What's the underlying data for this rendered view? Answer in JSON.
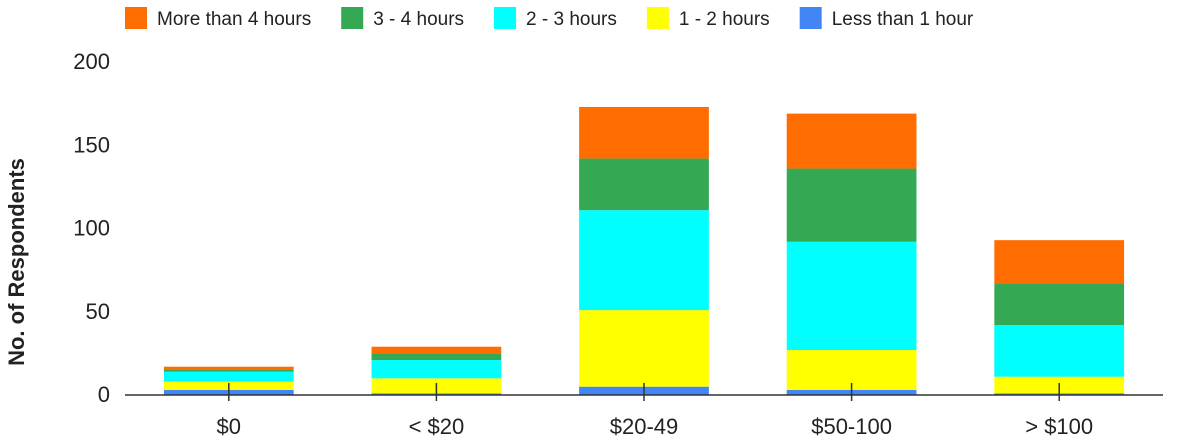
{
  "chart_data": {
    "type": "bar",
    "stacked": true,
    "title": "",
    "xlabel": "",
    "ylabel": "No. of Respondents",
    "ylim": [
      0,
      200
    ],
    "yticks": [
      0,
      50,
      100,
      150,
      200
    ],
    "grid": false,
    "legend_position": "top",
    "categories": [
      "$0",
      "< $20",
      "$20-49",
      "$50-100",
      "> $100"
    ],
    "series": [
      {
        "name": "Less than 1 hour",
        "color": "#4285f4",
        "values": [
          3,
          1,
          5,
          3,
          1
        ]
      },
      {
        "name": "1 - 2 hours",
        "color": "#ffff00",
        "values": [
          5,
          9,
          46,
          24,
          10
        ]
      },
      {
        "name": "2 - 3 hours",
        "color": "#00ffff",
        "values": [
          6,
          11,
          60,
          65,
          31
        ]
      },
      {
        "name": "3 - 4 hours",
        "color": "#34a853",
        "values": [
          1,
          4,
          31,
          44,
          25
        ]
      },
      {
        "name": "More than 4 hours",
        "color": "#ff6d01",
        "values": [
          2,
          4,
          31,
          33,
          26
        ]
      }
    ],
    "legend_order": [
      "More than 4 hours",
      "3 - 4 hours",
      "2 - 3 hours",
      "1 - 2 hours",
      "Less than 1 hour"
    ]
  }
}
